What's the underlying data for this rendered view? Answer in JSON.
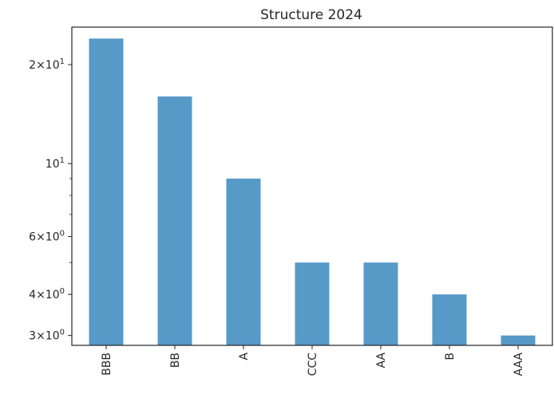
{
  "chart_data": {
    "type": "bar",
    "title": "Structure 2024",
    "xlabel": "",
    "ylabel": "",
    "yscale": "log",
    "ylim": [
      2.8,
      26
    ],
    "categories": [
      "BBB",
      "BB",
      "A",
      "CCC",
      "AA",
      "B",
      "AAA"
    ],
    "values": [
      24,
      16,
      9,
      5,
      5,
      4,
      3
    ],
    "yticks": [
      {
        "value": 3,
        "mantissa": "3",
        "times": "×",
        "base": "10",
        "exponent": "0"
      },
      {
        "value": 4,
        "mantissa": "4",
        "times": "×",
        "base": "10",
        "exponent": "0"
      },
      {
        "value": 6,
        "mantissa": "6",
        "times": "×",
        "base": "10",
        "exponent": "0"
      },
      {
        "value": 10,
        "mantissa": "",
        "times": "",
        "base": "10",
        "exponent": "1"
      },
      {
        "value": 20,
        "mantissa": "2",
        "times": "×",
        "base": "10",
        "exponent": "1"
      }
    ],
    "minor_yticks": [
      5,
      7,
      8,
      9
    ],
    "bar_color": "#5799c7",
    "grid": false,
    "legend": "none"
  }
}
